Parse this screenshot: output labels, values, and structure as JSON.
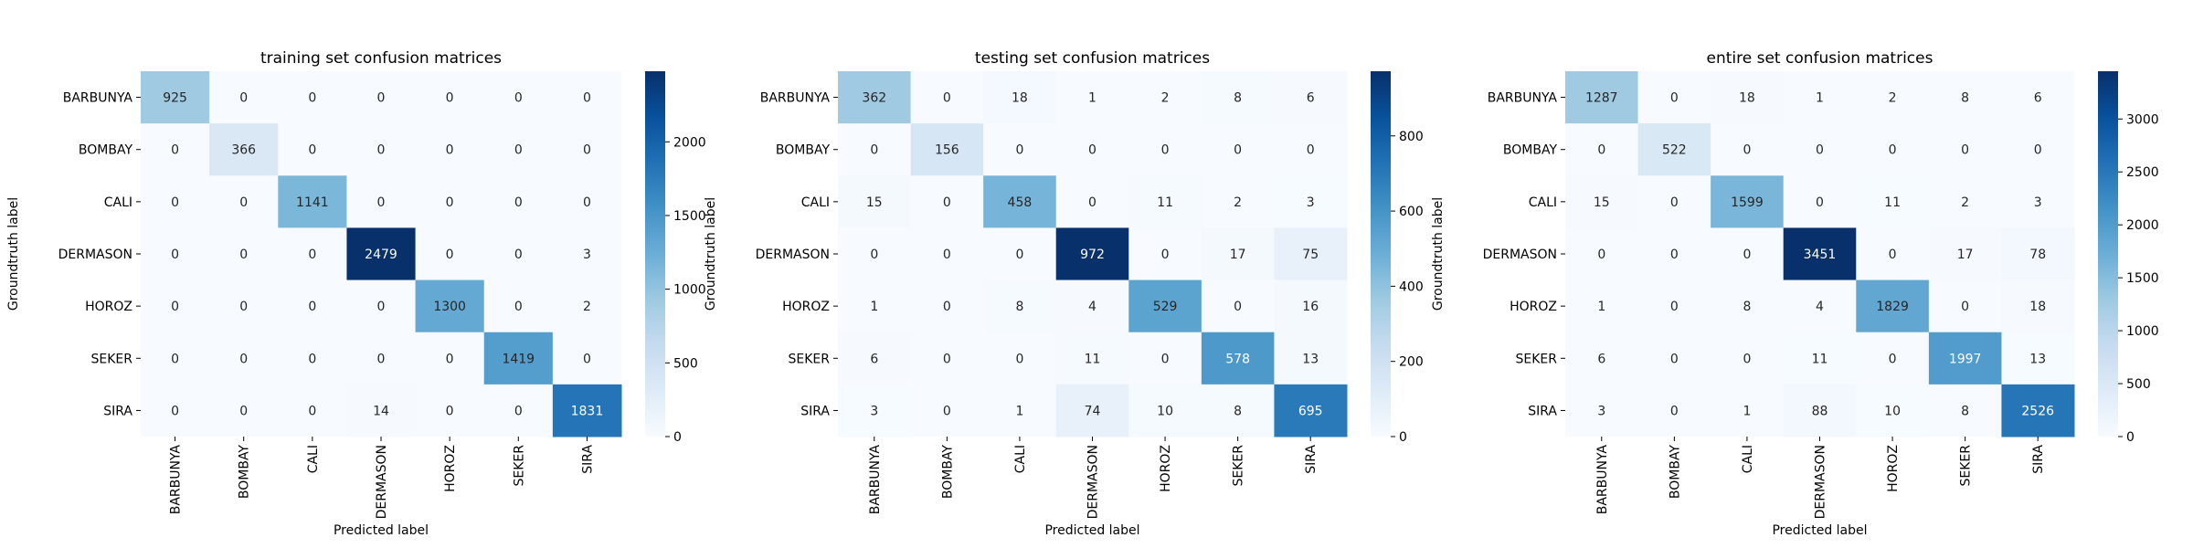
{
  "chart_data": [
    {
      "type": "heatmap",
      "title": "training set confusion matrices",
      "xlabel": "Predicted label",
      "ylabel": "Groundtruth label",
      "classes": [
        "BARBUNYA",
        "BOMBAY",
        "CALI",
        "DERMASON",
        "HOROZ",
        "SEKER",
        "SIRA"
      ],
      "matrix": [
        [
          925,
          0,
          0,
          0,
          0,
          0,
          0
        ],
        [
          0,
          366,
          0,
          0,
          0,
          0,
          0
        ],
        [
          0,
          0,
          1141,
          0,
          0,
          0,
          0
        ],
        [
          0,
          0,
          0,
          2479,
          0,
          0,
          3
        ],
        [
          0,
          0,
          0,
          0,
          1300,
          0,
          2
        ],
        [
          0,
          0,
          0,
          0,
          0,
          1419,
          0
        ],
        [
          0,
          0,
          0,
          14,
          0,
          0,
          1831
        ]
      ],
      "colorbar": {
        "min": 0,
        "max": 2479,
        "ticks": [
          "0",
          "500",
          "1000",
          "1500",
          "2000"
        ],
        "tick_values": [
          0,
          500,
          1000,
          1500,
          2000
        ]
      },
      "colormap": "Blues"
    },
    {
      "type": "heatmap",
      "title": "testing set confusion matrices",
      "xlabel": "Predicted label",
      "ylabel": "Groundtruth label",
      "classes": [
        "BARBUNYA",
        "BOMBAY",
        "CALI",
        "DERMASON",
        "HOROZ",
        "SEKER",
        "SIRA"
      ],
      "matrix": [
        [
          362,
          0,
          18,
          1,
          2,
          8,
          6
        ],
        [
          0,
          156,
          0,
          0,
          0,
          0,
          0
        ],
        [
          15,
          0,
          458,
          0,
          11,
          2,
          3
        ],
        [
          0,
          0,
          0,
          972,
          0,
          17,
          75
        ],
        [
          1,
          0,
          8,
          4,
          529,
          0,
          16
        ],
        [
          6,
          0,
          0,
          11,
          0,
          578,
          13
        ],
        [
          3,
          0,
          1,
          74,
          10,
          8,
          695
        ]
      ],
      "colorbar": {
        "min": 0,
        "max": 972,
        "ticks": [
          "0",
          "200",
          "400",
          "600",
          "800"
        ],
        "tick_values": [
          0,
          200,
          400,
          600,
          800
        ]
      },
      "colormap": "Blues"
    },
    {
      "type": "heatmap",
      "title": "entire set confusion matrices",
      "xlabel": "Predicted label",
      "ylabel": "Groundtruth label",
      "classes": [
        "BARBUNYA",
        "BOMBAY",
        "CALI",
        "DERMASON",
        "HOROZ",
        "SEKER",
        "SIRA"
      ],
      "matrix": [
        [
          1287,
          0,
          18,
          1,
          2,
          8,
          6
        ],
        [
          0,
          522,
          0,
          0,
          0,
          0,
          0
        ],
        [
          15,
          0,
          1599,
          0,
          11,
          2,
          3
        ],
        [
          0,
          0,
          0,
          3451,
          0,
          17,
          78
        ],
        [
          1,
          0,
          8,
          4,
          1829,
          0,
          18
        ],
        [
          6,
          0,
          0,
          11,
          0,
          1997,
          13
        ],
        [
          3,
          0,
          1,
          88,
          10,
          8,
          2526
        ]
      ],
      "colorbar": {
        "min": 0,
        "max": 3451,
        "ticks": [
          "0",
          "500",
          "1000",
          "1500",
          "2000",
          "2500",
          "3000"
        ],
        "tick_values": [
          0,
          500,
          1000,
          1500,
          2000,
          2500,
          3000
        ]
      },
      "colormap": "Blues"
    }
  ]
}
